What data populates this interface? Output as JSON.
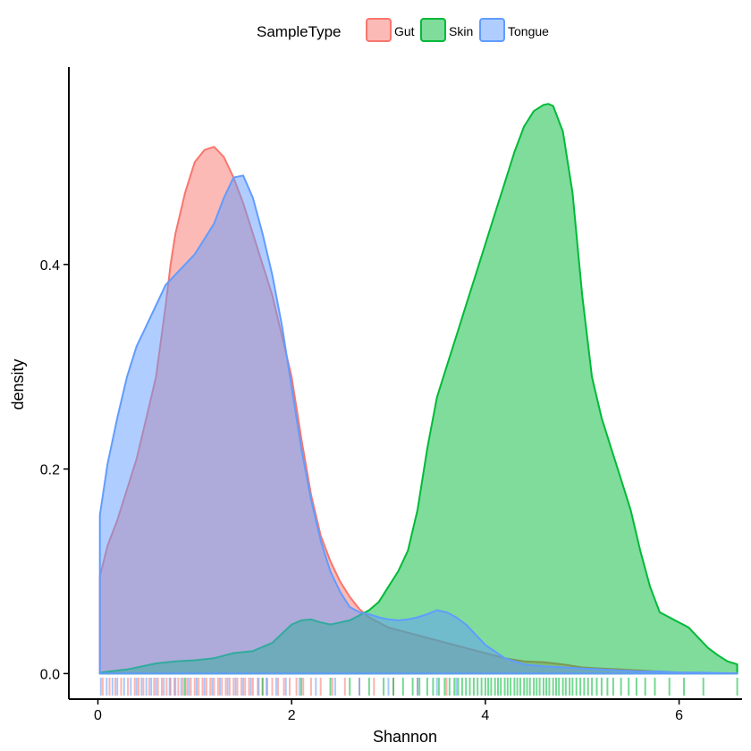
{
  "chart_data": {
    "type": "area",
    "xlabel": "Shannon",
    "ylabel": "density",
    "xlim": [
      -0.3,
      6.65
    ],
    "ylim": [
      -0.025,
      0.593
    ],
    "x_ticks": [
      0,
      2,
      4,
      6
    ],
    "x_tick_labels": [
      "0",
      "2",
      "4",
      "6"
    ],
    "y_ticks": [
      0.0,
      0.2,
      0.4
    ],
    "y_tick_labels": [
      "0.0",
      "0.2",
      "0.4"
    ],
    "grid": false,
    "legend": {
      "title": "SampleType",
      "position": "top"
    },
    "series": [
      {
        "name": "Gut",
        "color": "#F8766D",
        "x": [
          0.02,
          0.1,
          0.2,
          0.3,
          0.4,
          0.5,
          0.6,
          0.7,
          0.75,
          0.8,
          0.9,
          1.0,
          1.1,
          1.2,
          1.3,
          1.4,
          1.5,
          1.6,
          1.7,
          1.8,
          1.9,
          2.0,
          2.1,
          2.2,
          2.3,
          2.4,
          2.5,
          2.6,
          2.7,
          2.8,
          2.9,
          3.0,
          3.2,
          3.4,
          3.6,
          3.8,
          4.0,
          4.2,
          4.4,
          4.6,
          4.8,
          5.0,
          5.2,
          5.4,
          5.6,
          5.8,
          6.0,
          6.2,
          6.4,
          6.6
        ],
        "y": [
          0.095,
          0.125,
          0.15,
          0.18,
          0.21,
          0.25,
          0.29,
          0.36,
          0.4,
          0.43,
          0.47,
          0.5,
          0.512,
          0.515,
          0.505,
          0.485,
          0.46,
          0.43,
          0.4,
          0.37,
          0.33,
          0.29,
          0.23,
          0.175,
          0.135,
          0.11,
          0.09,
          0.075,
          0.063,
          0.055,
          0.05,
          0.045,
          0.04,
          0.035,
          0.03,
          0.025,
          0.02,
          0.015,
          0.012,
          0.011,
          0.009,
          0.006,
          0.005,
          0.004,
          0.003,
          0.002,
          0.001,
          0.0005,
          0.0002,
          0.0001
        ]
      },
      {
        "name": "Skin",
        "color": "#00BA38",
        "x": [
          0.02,
          0.3,
          0.6,
          0.8,
          1.0,
          1.2,
          1.4,
          1.6,
          1.8,
          2.0,
          2.1,
          2.2,
          2.3,
          2.4,
          2.5,
          2.6,
          2.7,
          2.8,
          2.9,
          3.0,
          3.1,
          3.2,
          3.3,
          3.4,
          3.5,
          3.6,
          3.7,
          3.8,
          3.9,
          4.0,
          4.1,
          4.2,
          4.3,
          4.4,
          4.5,
          4.6,
          4.65,
          4.7,
          4.8,
          4.9,
          5.0,
          5.1,
          5.2,
          5.3,
          5.4,
          5.5,
          5.6,
          5.7,
          5.8,
          5.9,
          6.0,
          6.1,
          6.2,
          6.3,
          6.4,
          6.5,
          6.6
        ],
        "y": [
          0.001,
          0.004,
          0.01,
          0.012,
          0.013,
          0.015,
          0.02,
          0.022,
          0.03,
          0.048,
          0.052,
          0.053,
          0.05,
          0.048,
          0.05,
          0.052,
          0.057,
          0.062,
          0.07,
          0.085,
          0.1,
          0.12,
          0.16,
          0.22,
          0.27,
          0.3,
          0.33,
          0.36,
          0.39,
          0.42,
          0.45,
          0.48,
          0.51,
          0.535,
          0.55,
          0.556,
          0.557,
          0.555,
          0.53,
          0.47,
          0.37,
          0.29,
          0.25,
          0.22,
          0.19,
          0.16,
          0.12,
          0.085,
          0.06,
          0.055,
          0.05,
          0.045,
          0.035,
          0.025,
          0.018,
          0.012,
          0.009
        ]
      },
      {
        "name": "Tongue",
        "color": "#619CFF",
        "x": [
          0.02,
          0.1,
          0.2,
          0.3,
          0.4,
          0.5,
          0.6,
          0.7,
          0.8,
          0.9,
          1.0,
          1.1,
          1.2,
          1.3,
          1.4,
          1.5,
          1.6,
          1.7,
          1.8,
          1.9,
          2.0,
          2.1,
          2.2,
          2.3,
          2.4,
          2.5,
          2.6,
          2.7,
          2.8,
          2.9,
          3.0,
          3.1,
          3.2,
          3.3,
          3.4,
          3.5,
          3.6,
          3.7,
          3.8,
          3.9,
          4.0,
          4.2,
          4.4,
          4.6,
          4.8,
          5.0,
          5.2,
          5.4,
          5.6,
          5.8,
          6.0,
          6.2,
          6.4,
          6.6
        ],
        "y": [
          0.155,
          0.205,
          0.25,
          0.29,
          0.32,
          0.34,
          0.36,
          0.38,
          0.39,
          0.4,
          0.41,
          0.425,
          0.44,
          0.465,
          0.485,
          0.487,
          0.465,
          0.43,
          0.39,
          0.34,
          0.28,
          0.22,
          0.17,
          0.13,
          0.1,
          0.08,
          0.065,
          0.06,
          0.058,
          0.055,
          0.053,
          0.052,
          0.053,
          0.055,
          0.058,
          0.062,
          0.06,
          0.055,
          0.048,
          0.038,
          0.028,
          0.015,
          0.009,
          0.007,
          0.006,
          0.005,
          0.004,
          0.003,
          0.002,
          0.002,
          0.001,
          0.001,
          0.0005,
          0.0002
        ]
      }
    ],
    "rug": {
      "Gut": [
        0.05,
        0.12,
        0.18,
        0.24,
        0.31,
        0.38,
        0.42,
        0.47,
        0.53,
        0.58,
        0.62,
        0.66,
        0.71,
        0.75,
        0.79,
        0.83,
        0.88,
        0.92,
        0.96,
        1.0,
        1.04,
        1.08,
        1.12,
        1.16,
        1.2,
        1.24,
        1.28,
        1.32,
        1.36,
        1.4,
        1.44,
        1.48,
        1.52,
        1.56,
        1.6,
        1.65,
        1.7,
        1.75,
        1.8,
        1.86,
        1.92,
        1.98,
        2.05,
        2.12,
        2.2,
        2.3,
        2.42,
        2.55,
        2.7,
        2.85,
        3.05,
        3.3,
        3.6
      ],
      "Skin": [
        0.9,
        1.7,
        2.1,
        2.4,
        2.6,
        2.8,
        2.95,
        3.05,
        3.15,
        3.25,
        3.32,
        3.4,
        3.46,
        3.52,
        3.58,
        3.63,
        3.68,
        3.72,
        3.76,
        3.8,
        3.84,
        3.88,
        3.92,
        3.96,
        4.0,
        4.03,
        4.06,
        4.1,
        4.13,
        4.16,
        4.2,
        4.23,
        4.26,
        4.3,
        4.33,
        4.36,
        4.4,
        4.43,
        4.46,
        4.5,
        4.53,
        4.56,
        4.6,
        4.63,
        4.66,
        4.7,
        4.73,
        4.76,
        4.8,
        4.83,
        4.87,
        4.9,
        4.94,
        4.98,
        5.02,
        5.06,
        5.1,
        5.15,
        5.2,
        5.26,
        5.32,
        5.4,
        5.48,
        5.56,
        5.65,
        5.75,
        5.9,
        6.05,
        6.25,
        6.6
      ],
      "Tongue": [
        0.03,
        0.09,
        0.15,
        0.2,
        0.27,
        0.34,
        0.4,
        0.45,
        0.5,
        0.55,
        0.6,
        0.68,
        0.74,
        0.8,
        0.86,
        0.94,
        1.02,
        1.1,
        1.18,
        1.26,
        1.34,
        1.42,
        1.5,
        1.58,
        1.66,
        1.74,
        1.84,
        1.94,
        2.08,
        2.25,
        2.45,
        2.7,
        3.0,
        3.3,
        3.5,
        3.7
      ]
    }
  }
}
